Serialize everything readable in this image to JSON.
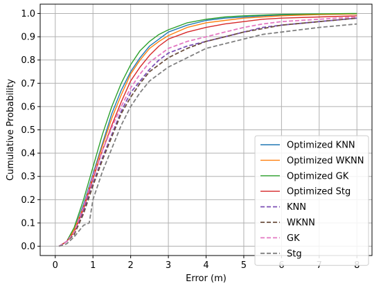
{
  "chart_data": {
    "type": "line",
    "title": "",
    "xlabel": "Error (m)",
    "ylabel": "Cumulative Probability",
    "xlim": [
      -0.4,
      8.4
    ],
    "ylim": [
      -0.04,
      1.04
    ],
    "xticks": [
      0,
      1,
      2,
      3,
      4,
      5,
      6,
      7,
      8
    ],
    "yticks": [
      0.0,
      0.1,
      0.2,
      0.3,
      0.4,
      0.5,
      0.6,
      0.7,
      0.8,
      0.9,
      1.0
    ],
    "xtick_labels": [
      "0",
      "1",
      "2",
      "3",
      "4",
      "5",
      "6",
      "7",
      "8"
    ],
    "ytick_labels": [
      "0.0",
      "0.1",
      "0.2",
      "0.3",
      "0.4",
      "0.5",
      "0.6",
      "0.7",
      "0.8",
      "0.9",
      "1.0"
    ],
    "grid": true,
    "legend_position": "lower-right",
    "series": [
      {
        "name": "Optimized KNN",
        "color": "#1f77b4",
        "style": "solid",
        "points": [
          [
            0.1,
            0
          ],
          [
            0.3,
            0.02
          ],
          [
            0.5,
            0.07
          ],
          [
            0.75,
            0.18
          ],
          [
            1.0,
            0.31
          ],
          [
            1.25,
            0.44
          ],
          [
            1.5,
            0.57
          ],
          [
            1.75,
            0.67
          ],
          [
            2.0,
            0.75
          ],
          [
            2.25,
            0.81
          ],
          [
            2.5,
            0.86
          ],
          [
            2.75,
            0.89
          ],
          [
            3.0,
            0.92
          ],
          [
            3.5,
            0.95
          ],
          [
            4.0,
            0.97
          ],
          [
            4.5,
            0.98
          ],
          [
            5.0,
            0.985
          ],
          [
            5.5,
            0.99
          ],
          [
            6.0,
            0.993
          ],
          [
            7.0,
            0.996
          ],
          [
            8.0,
            0.998
          ]
        ]
      },
      {
        "name": "Optimized WKNN",
        "color": "#ff7f0e",
        "style": "solid",
        "points": [
          [
            0.1,
            0
          ],
          [
            0.3,
            0.02
          ],
          [
            0.5,
            0.07
          ],
          [
            0.75,
            0.17
          ],
          [
            1.0,
            0.3
          ],
          [
            1.25,
            0.43
          ],
          [
            1.5,
            0.55
          ],
          [
            1.75,
            0.65
          ],
          [
            2.0,
            0.74
          ],
          [
            2.25,
            0.8
          ],
          [
            2.5,
            0.85
          ],
          [
            2.75,
            0.88
          ],
          [
            3.0,
            0.905
          ],
          [
            3.5,
            0.94
          ],
          [
            4.0,
            0.96
          ],
          [
            4.5,
            0.97
          ],
          [
            5.0,
            0.98
          ],
          [
            5.5,
            0.985
          ],
          [
            6.0,
            0.99
          ],
          [
            7.0,
            0.995
          ],
          [
            8.0,
            0.998
          ]
        ]
      },
      {
        "name": "Optimized GK",
        "color": "#2ca02c",
        "style": "solid",
        "points": [
          [
            0.1,
            0
          ],
          [
            0.3,
            0.02
          ],
          [
            0.5,
            0.08
          ],
          [
            0.75,
            0.2
          ],
          [
            1.0,
            0.34
          ],
          [
            1.25,
            0.48
          ],
          [
            1.5,
            0.6
          ],
          [
            1.75,
            0.7
          ],
          [
            2.0,
            0.78
          ],
          [
            2.25,
            0.84
          ],
          [
            2.5,
            0.88
          ],
          [
            2.75,
            0.91
          ],
          [
            3.0,
            0.93
          ],
          [
            3.5,
            0.96
          ],
          [
            4.0,
            0.975
          ],
          [
            4.5,
            0.985
          ],
          [
            5.0,
            0.99
          ],
          [
            5.5,
            0.993
          ],
          [
            6.0,
            0.996
          ],
          [
            7.0,
            0.998
          ],
          [
            8.0,
            1.0
          ]
        ]
      },
      {
        "name": "Optimized Stg",
        "color": "#d62728",
        "style": "solid",
        "points": [
          [
            0.1,
            0
          ],
          [
            0.3,
            0.02
          ],
          [
            0.5,
            0.06
          ],
          [
            0.75,
            0.16
          ],
          [
            1.0,
            0.29
          ],
          [
            1.25,
            0.41
          ],
          [
            1.5,
            0.52
          ],
          [
            1.75,
            0.62
          ],
          [
            2.0,
            0.71
          ],
          [
            2.25,
            0.77
          ],
          [
            2.5,
            0.82
          ],
          [
            2.75,
            0.86
          ],
          [
            3.0,
            0.89
          ],
          [
            3.5,
            0.92
          ],
          [
            4.0,
            0.94
          ],
          [
            4.5,
            0.955
          ],
          [
            5.0,
            0.965
          ],
          [
            5.5,
            0.975
          ],
          [
            6.0,
            0.98
          ],
          [
            7.0,
            0.985
          ],
          [
            8.0,
            0.99
          ]
        ]
      },
      {
        "name": "KNN",
        "color": "#7b4fb5",
        "style": "dashed",
        "points": [
          [
            0.1,
            0
          ],
          [
            0.3,
            0.02
          ],
          [
            0.5,
            0.05
          ],
          [
            0.75,
            0.15
          ],
          [
            1.0,
            0.27
          ],
          [
            1.25,
            0.38
          ],
          [
            1.5,
            0.48
          ],
          [
            1.75,
            0.58
          ],
          [
            2.0,
            0.66
          ],
          [
            2.25,
            0.71
          ],
          [
            2.5,
            0.76
          ],
          [
            2.75,
            0.8
          ],
          [
            3.0,
            0.83
          ],
          [
            3.5,
            0.86
          ],
          [
            4.0,
            0.88
          ],
          [
            4.5,
            0.9
          ],
          [
            5.0,
            0.92
          ],
          [
            5.5,
            0.94
          ],
          [
            6.0,
            0.95
          ],
          [
            7.0,
            0.965
          ],
          [
            8.0,
            0.98
          ]
        ]
      },
      {
        "name": "WKNN",
        "color": "#6b4f3e",
        "style": "dashed",
        "points": [
          [
            0.1,
            0
          ],
          [
            0.3,
            0.02
          ],
          [
            0.5,
            0.05
          ],
          [
            0.75,
            0.14
          ],
          [
            1.0,
            0.26
          ],
          [
            1.25,
            0.37
          ],
          [
            1.5,
            0.47
          ],
          [
            1.75,
            0.57
          ],
          [
            2.0,
            0.64
          ],
          [
            2.25,
            0.7
          ],
          [
            2.5,
            0.75
          ],
          [
            2.75,
            0.78
          ],
          [
            3.0,
            0.81
          ],
          [
            3.5,
            0.85
          ],
          [
            4.0,
            0.88
          ],
          [
            4.5,
            0.9
          ],
          [
            5.0,
            0.92
          ],
          [
            5.5,
            0.935
          ],
          [
            6.0,
            0.95
          ],
          [
            7.0,
            0.965
          ],
          [
            8.0,
            0.98
          ]
        ]
      },
      {
        "name": "GK",
        "color": "#e377c2",
        "style": "dashed",
        "points": [
          [
            0.1,
            0
          ],
          [
            0.3,
            0.02
          ],
          [
            0.5,
            0.06
          ],
          [
            0.75,
            0.17
          ],
          [
            1.0,
            0.3
          ],
          [
            1.25,
            0.41
          ],
          [
            1.5,
            0.51
          ],
          [
            1.75,
            0.6
          ],
          [
            2.0,
            0.68
          ],
          [
            2.25,
            0.74
          ],
          [
            2.5,
            0.79
          ],
          [
            2.75,
            0.82
          ],
          [
            3.0,
            0.85
          ],
          [
            3.5,
            0.88
          ],
          [
            4.0,
            0.9
          ],
          [
            4.5,
            0.92
          ],
          [
            5.0,
            0.94
          ],
          [
            5.5,
            0.955
          ],
          [
            6.0,
            0.965
          ],
          [
            7.0,
            0.975
          ],
          [
            8.0,
            0.985
          ]
        ]
      },
      {
        "name": "Stg",
        "color": "#7f7f7f",
        "style": "dashed",
        "points": [
          [
            0.1,
            0
          ],
          [
            0.3,
            0.01
          ],
          [
            0.5,
            0.04
          ],
          [
            0.75,
            0.09
          ],
          [
            0.9,
            0.1
          ],
          [
            1.0,
            0.2
          ],
          [
            1.25,
            0.32
          ],
          [
            1.5,
            0.42
          ],
          [
            1.75,
            0.52
          ],
          [
            2.0,
            0.6
          ],
          [
            2.25,
            0.66
          ],
          [
            2.5,
            0.71
          ],
          [
            2.75,
            0.74
          ],
          [
            3.0,
            0.77
          ],
          [
            3.5,
            0.81
          ],
          [
            4.0,
            0.85
          ],
          [
            4.5,
            0.87
          ],
          [
            5.0,
            0.89
          ],
          [
            5.5,
            0.91
          ],
          [
            6.0,
            0.92
          ],
          [
            7.0,
            0.94
          ],
          [
            8.0,
            0.955
          ]
        ]
      }
    ]
  }
}
